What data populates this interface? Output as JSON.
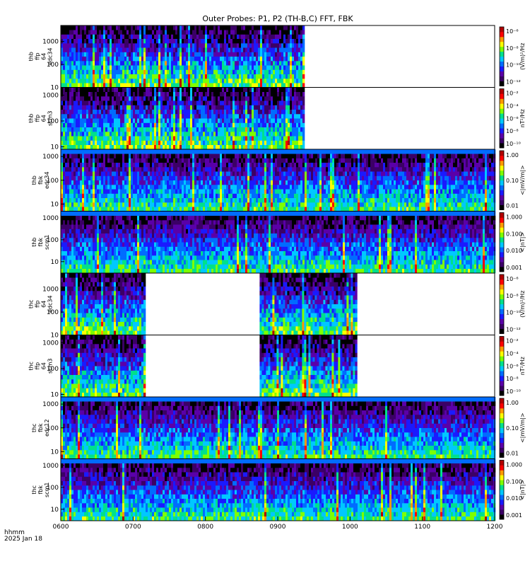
{
  "title": "Outer Probes: P1, P2 (TH-B,C) FFT, FBK",
  "footer": {
    "line1": "hhmm",
    "line2": "2025 Jan 18"
  },
  "chart_data": {
    "type": "heatmap",
    "x": {
      "tick_labels": [
        "0600",
        "0700",
        "0800",
        "0900",
        "1000",
        "1100",
        "1200"
      ],
      "range": [
        "06:00",
        "12:00"
      ]
    },
    "panels": [
      {
        "id": "thb-ffp-e34",
        "ylabel": [
          "thb",
          "ffp",
          "64",
          "edc34"
        ],
        "yticks": [
          "10",
          "100",
          "1000"
        ],
        "ylim": [
          10,
          5000
        ],
        "ylog": true,
        "cbar_label": "(V/m)²/Hz",
        "cbar_ticks": [
          "10⁻¹²",
          "10⁻¹⁰",
          "10⁻⁸",
          "10⁻⁶"
        ],
        "coverage": [
          [
            "06:00",
            "09:22"
          ]
        ]
      },
      {
        "id": "thb-ffp-scm3",
        "ylabel": [
          "thb",
          "ffp",
          "64",
          "scm3"
        ],
        "yticks": [
          "10",
          "100",
          "1000"
        ],
        "ylim": [
          8,
          2000
        ],
        "ylog": true,
        "cbar_label": "nT²/Hz",
        "cbar_ticks": [
          "10⁻¹⁰",
          "10⁻⁸",
          "10⁻⁶",
          "10⁻⁴",
          "10⁻²"
        ],
        "coverage": [
          [
            "06:00",
            "09:22"
          ]
        ]
      },
      {
        "id": "thb-fbk-e34",
        "ylabel": [
          "thb",
          "fbk",
          "edc34"
        ],
        "yticks": [
          "10",
          "100",
          "1000"
        ],
        "ylim": [
          5,
          2000
        ],
        "ylog": true,
        "cbar_label": "<|mV/m|>",
        "cbar_ticks": [
          "0.01",
          "0.10",
          "1.00"
        ],
        "coverage": [
          [
            "06:00",
            "12:00"
          ]
        ]
      },
      {
        "id": "thb-fbk-scm1",
        "ylabel": [
          "thb",
          "fbk",
          "scm1"
        ],
        "yticks": [
          "10",
          "100",
          "1000"
        ],
        "ylim": [
          3,
          2000
        ],
        "ylog": true,
        "cbar_label": "<|nT|>",
        "cbar_ticks": [
          "0.001",
          "0.010",
          "0.100",
          "1.000"
        ],
        "coverage": [
          [
            "06:00",
            "12:00"
          ]
        ]
      },
      {
        "id": "thc-ffp-e34",
        "ylabel": [
          "thc",
          "ffp",
          "64",
          "edc34"
        ],
        "yticks": [
          "10",
          "100",
          "1000"
        ],
        "ylim": [
          10,
          5000
        ],
        "ylog": true,
        "cbar_label": "(V/m)²/Hz",
        "cbar_ticks": [
          "10⁻¹²",
          "10⁻¹⁰",
          "10⁻⁸",
          "10⁻⁶"
        ],
        "coverage": [
          [
            "06:00",
            "07:10"
          ],
          [
            "08:45",
            "10:05"
          ]
        ]
      },
      {
        "id": "thc-ffp-scm3",
        "ylabel": [
          "thc",
          "ffp",
          "64",
          "scm3"
        ],
        "yticks": [
          "10",
          "100",
          "1000"
        ],
        "ylim": [
          8,
          2000
        ],
        "ylog": true,
        "cbar_label": "nT²/Hz",
        "cbar_ticks": [
          "10⁻¹⁰",
          "10⁻⁸",
          "10⁻⁶",
          "10⁻⁴",
          "10⁻²"
        ],
        "coverage": [
          [
            "06:00",
            "07:10"
          ],
          [
            "08:45",
            "10:05"
          ]
        ]
      },
      {
        "id": "thc-fbk-e12",
        "ylabel": [
          "thc",
          "fbk",
          "edc12"
        ],
        "yticks": [
          "10",
          "100",
          "1000"
        ],
        "ylim": [
          5,
          2000
        ],
        "ylog": true,
        "cbar_label": "<|mV/m|>",
        "cbar_ticks": [
          "0.01",
          "0.10",
          "1.00"
        ],
        "coverage": [
          [
            "06:00",
            "12:00"
          ]
        ]
      },
      {
        "id": "thc-fbk-scm1",
        "ylabel": [
          "thc",
          "fbk",
          "scm1"
        ],
        "yticks": [
          "10",
          "100",
          "1000"
        ],
        "ylim": [
          3,
          2000
        ],
        "ylog": true,
        "cbar_label": "<|nT|>",
        "cbar_ticks": [
          "0.001",
          "0.010",
          "0.100",
          "1.000"
        ],
        "coverage": [
          [
            "06:00",
            "12:00"
          ]
        ]
      }
    ],
    "colormap": [
      "#000000",
      "#3b0066",
      "#5a00a8",
      "#1a1aff",
      "#006cff",
      "#00c8ff",
      "#00e08c",
      "#7dff00",
      "#ffff00",
      "#ff9900",
      "#ff0000",
      "#b00000"
    ]
  }
}
